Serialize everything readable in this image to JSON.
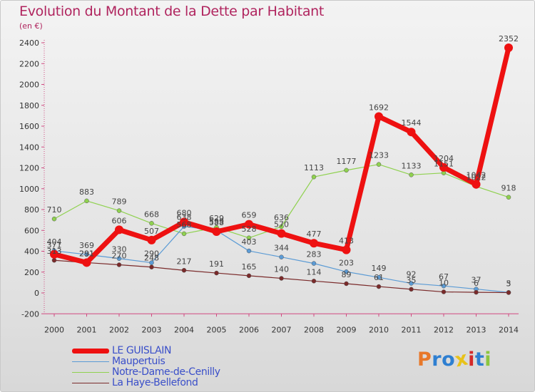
{
  "title": "Evolution du Montant de la Dette par Habitant",
  "subtitle": "(en €)",
  "logo": {
    "text": "Proxiti",
    "colors": [
      "#e8782a",
      "#2e7fd1",
      "#2e7fd1",
      "#e8c21a",
      "#d42a2a",
      "#2e7fd1",
      "#8cc63f"
    ]
  },
  "chart_data": {
    "type": "line",
    "x": [
      2000,
      2001,
      2002,
      2003,
      2004,
      2005,
      2006,
      2007,
      2008,
      2009,
      2010,
      2011,
      2012,
      2013,
      2014
    ],
    "ylim": [
      -200,
      2400
    ],
    "yticks": [
      -200,
      0,
      200,
      400,
      600,
      800,
      1000,
      1200,
      1400,
      1600,
      1800,
      2000,
      2200,
      2400
    ],
    "grid": false,
    "legend_position": "bottom-left",
    "series": [
      {
        "name": "LE GUISLAIN",
        "color": "#ee1111",
        "values": [
          371,
          291,
          606,
          507,
          680,
          588,
          659,
          570,
          477,
          413,
          1692,
          1544,
          1204,
          1042,
          2352
        ]
      },
      {
        "name": "Maupertuis",
        "color": "#5b9bd5",
        "values": [
          404,
          369,
          330,
          290,
          638,
          599,
          403,
          344,
          283,
          203,
          149,
          92,
          67,
          37,
          5
        ]
      },
      {
        "name": "Notre-Dame-de-Cenilly",
        "color": "#8fd14f",
        "values": [
          710,
          883,
          789,
          668,
          568,
          629,
          528,
          636,
          1113,
          1177,
          1233,
          1133,
          1151,
          1022,
          918
        ]
      },
      {
        "name": "La Haye-Bellefond",
        "color": "#7a2a2a",
        "values": [
          313,
          291,
          270,
          248,
          217,
          191,
          165,
          140,
          114,
          89,
          61,
          35,
          10,
          6,
          3
        ]
      }
    ]
  }
}
